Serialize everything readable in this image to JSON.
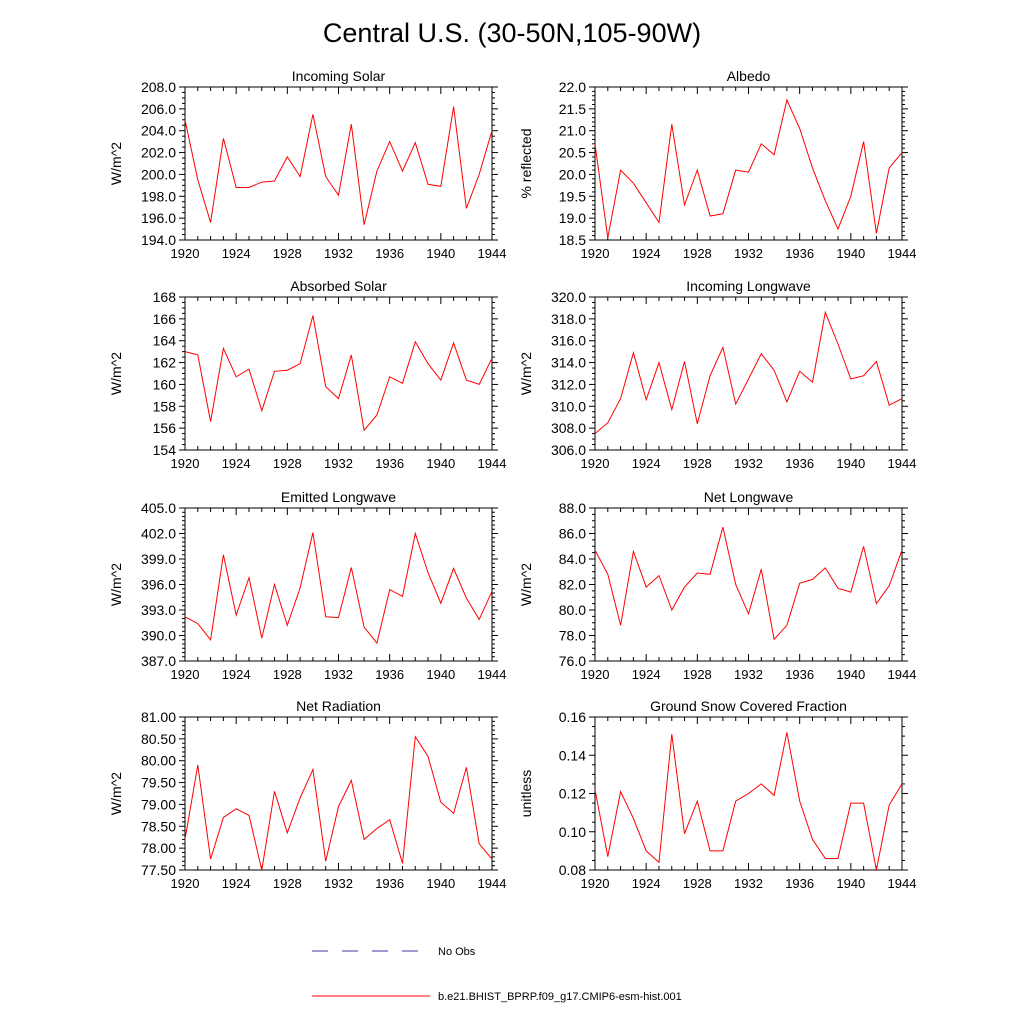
{
  "figure_title": "Central U.S. (30-50N,105-90W)",
  "colors": {
    "model": "#ff0000",
    "obs": "#3a3aa6",
    "axis": "#000000"
  },
  "legend": [
    {
      "label": "No Obs",
      "style": "dashed",
      "color": "#3a3aa6"
    },
    {
      "label": "b.e21.BHIST_BPRP.f09_g17.CMIP6-esm-hist.001",
      "style": "solid",
      "color": "#ff0000"
    }
  ],
  "chart_data": [
    {
      "type": "line",
      "title": "Incoming Solar",
      "ylabel": "W/m^2",
      "xlim": [
        1920,
        1944
      ],
      "ylim": [
        194,
        208
      ],
      "xticks": [
        1920,
        1924,
        1928,
        1932,
        1936,
        1940,
        1944
      ],
      "xtick_labels": [
        "1920",
        "1924",
        "1928",
        "1932",
        "1936",
        "1940",
        "1944"
      ],
      "yticks": [
        194,
        196,
        198,
        200,
        202,
        204,
        206,
        208
      ],
      "ytick_labels": [
        "194.0",
        "196.0",
        "198.0",
        "200.0",
        "202.0",
        "204.0",
        "206.0",
        "208.0"
      ],
      "yminor": 0.5,
      "series": [
        {
          "name": "b.e21.BHIST_BPRP.f09_g17.CMIP6-esm-hist.001",
          "x": [
            1920,
            1921,
            1922,
            1923,
            1924,
            1925,
            1926,
            1927,
            1928,
            1929,
            1930,
            1931,
            1932,
            1933,
            1934,
            1935,
            1936,
            1937,
            1938,
            1939,
            1940,
            1941,
            1942,
            1943,
            1944
          ],
          "values": [
            205.0,
            199.5,
            195.6,
            203.3,
            198.8,
            198.8,
            199.3,
            199.4,
            201.6,
            199.8,
            205.5,
            199.8,
            198.1,
            204.6,
            195.4,
            200.3,
            203.0,
            200.3,
            202.9,
            199.1,
            198.9,
            206.2,
            196.9,
            200.0,
            204.0
          ]
        }
      ]
    },
    {
      "type": "line",
      "title": "Albedo",
      "ylabel": "% reflected",
      "xlim": [
        1920,
        1944
      ],
      "ylim": [
        18.5,
        22.0
      ],
      "xticks": [
        1920,
        1924,
        1928,
        1932,
        1936,
        1940,
        1944
      ],
      "xtick_labels": [
        "1920",
        "1924",
        "1928",
        "1932",
        "1936",
        "1940",
        "1944"
      ],
      "yticks": [
        18.5,
        19.0,
        19.5,
        20.0,
        20.5,
        21.0,
        21.5,
        22.0
      ],
      "ytick_labels": [
        "18.5",
        "19.0",
        "19.5",
        "20.0",
        "20.5",
        "21.0",
        "21.5",
        "22.0"
      ],
      "yminor": 0.1,
      "series": [
        {
          "name": "b.e21.BHIST_BPRP.f09_g17.CMIP6-esm-hist.001",
          "x": [
            1920,
            1921,
            1922,
            1923,
            1924,
            1925,
            1926,
            1927,
            1928,
            1929,
            1930,
            1931,
            1932,
            1933,
            1934,
            1935,
            1936,
            1937,
            1938,
            1939,
            1940,
            1941,
            1942,
            1943,
            1944
          ],
          "values": [
            20.7,
            18.55,
            20.1,
            19.8,
            19.35,
            18.9,
            21.15,
            19.3,
            20.1,
            19.05,
            19.1,
            20.1,
            20.05,
            20.7,
            20.45,
            21.7,
            21.05,
            20.15,
            19.4,
            18.75,
            19.5,
            20.75,
            18.65,
            20.15,
            20.5
          ]
        }
      ]
    },
    {
      "type": "line",
      "title": "Absorbed Solar",
      "ylabel": "W/m^2",
      "xlim": [
        1920,
        1944
      ],
      "ylim": [
        154,
        168
      ],
      "xticks": [
        1920,
        1924,
        1928,
        1932,
        1936,
        1940,
        1944
      ],
      "xtick_labels": [
        "1920",
        "1924",
        "1928",
        "1932",
        "1936",
        "1940",
        "1944"
      ],
      "yticks": [
        154,
        156,
        158,
        160,
        162,
        164,
        166,
        168
      ],
      "ytick_labels": [
        "154",
        "156",
        "158",
        "160",
        "162",
        "164",
        "166",
        "168"
      ],
      "yminor": 0.5,
      "series": [
        {
          "name": "b.e21.BHIST_BPRP.f09_g17.CMIP6-esm-hist.001",
          "x": [
            1920,
            1921,
            1922,
            1923,
            1924,
            1925,
            1926,
            1927,
            1928,
            1929,
            1930,
            1931,
            1932,
            1933,
            1934,
            1935,
            1936,
            1937,
            1938,
            1939,
            1940,
            1941,
            1942,
            1943,
            1944
          ],
          "values": [
            163.0,
            162.7,
            156.6,
            163.3,
            160.7,
            161.4,
            157.6,
            161.2,
            161.3,
            161.9,
            166.3,
            159.8,
            158.7,
            162.7,
            155.8,
            157.2,
            160.7,
            160.1,
            163.9,
            161.9,
            160.4,
            163.8,
            160.4,
            160.0,
            162.4
          ]
        }
      ]
    },
    {
      "type": "line",
      "title": "Incoming Longwave",
      "ylabel": "W/m^2",
      "xlim": [
        1920,
        1944
      ],
      "ylim": [
        306,
        320
      ],
      "xticks": [
        1920,
        1924,
        1928,
        1932,
        1936,
        1940,
        1944
      ],
      "xtick_labels": [
        "1920",
        "1924",
        "1928",
        "1932",
        "1936",
        "1940",
        "1944"
      ],
      "yticks": [
        306,
        308,
        310,
        312,
        314,
        316,
        318,
        320
      ],
      "ytick_labels": [
        "306.0",
        "308.0",
        "310.0",
        "312.0",
        "314.0",
        "316.0",
        "318.0",
        "320.0"
      ],
      "yminor": 0.5,
      "series": [
        {
          "name": "b.e21.BHIST_BPRP.f09_g17.CMIP6-esm-hist.001",
          "x": [
            1920,
            1921,
            1922,
            1923,
            1924,
            1925,
            1926,
            1927,
            1928,
            1929,
            1930,
            1931,
            1932,
            1933,
            1934,
            1935,
            1936,
            1937,
            1938,
            1939,
            1940,
            1941,
            1942,
            1943,
            1944
          ],
          "values": [
            307.5,
            308.5,
            310.7,
            314.9,
            310.6,
            314.0,
            309.7,
            314.1,
            308.4,
            312.8,
            315.4,
            310.2,
            312.5,
            314.8,
            313.3,
            310.4,
            313.2,
            312.2,
            318.6,
            315.7,
            312.5,
            312.8,
            314.1,
            310.1,
            310.7
          ]
        }
      ]
    },
    {
      "type": "line",
      "title": "Emitted Longwave",
      "ylabel": "W/m^2",
      "xlim": [
        1920,
        1944
      ],
      "ylim": [
        387,
        405
      ],
      "xticks": [
        1920,
        1924,
        1928,
        1932,
        1936,
        1940,
        1944
      ],
      "xtick_labels": [
        "1920",
        "1924",
        "1928",
        "1932",
        "1936",
        "1940",
        "1944"
      ],
      "yticks": [
        387,
        390,
        393,
        396,
        399,
        402,
        405
      ],
      "ytick_labels": [
        "387.0",
        "390.0",
        "393.0",
        "396.0",
        "399.0",
        "402.0",
        "405.0"
      ],
      "yminor": 0.5,
      "series": [
        {
          "name": "b.e21.BHIST_BPRP.f09_g17.CMIP6-esm-hist.001",
          "x": [
            1920,
            1921,
            1922,
            1923,
            1924,
            1925,
            1926,
            1927,
            1928,
            1929,
            1930,
            1931,
            1932,
            1933,
            1934,
            1935,
            1936,
            1937,
            1938,
            1939,
            1940,
            1941,
            1942,
            1943,
            1944
          ],
          "values": [
            392.2,
            391.4,
            389.5,
            399.5,
            392.4,
            396.8,
            389.7,
            396.0,
            391.2,
            395.6,
            402.1,
            392.2,
            392.1,
            398.0,
            391.0,
            389.1,
            395.4,
            394.6,
            402.0,
            397.4,
            393.8,
            397.9,
            394.4,
            391.9,
            395.2
          ]
        }
      ]
    },
    {
      "type": "line",
      "title": "Net Longwave",
      "ylabel": "W/m^2",
      "xlim": [
        1920,
        1944
      ],
      "ylim": [
        76,
        88
      ],
      "xticks": [
        1920,
        1924,
        1928,
        1932,
        1936,
        1940,
        1944
      ],
      "xtick_labels": [
        "1920",
        "1924",
        "1928",
        "1932",
        "1936",
        "1940",
        "1944"
      ],
      "yticks": [
        76,
        78,
        80,
        82,
        84,
        86,
        88
      ],
      "ytick_labels": [
        "76.0",
        "78.0",
        "80.0",
        "82.0",
        "84.0",
        "86.0",
        "88.0"
      ],
      "yminor": 0.5,
      "series": [
        {
          "name": "b.e21.BHIST_BPRP.f09_g17.CMIP6-esm-hist.001",
          "x": [
            1920,
            1921,
            1922,
            1923,
            1924,
            1925,
            1926,
            1927,
            1928,
            1929,
            1930,
            1931,
            1932,
            1933,
            1934,
            1935,
            1936,
            1937,
            1938,
            1939,
            1940,
            1941,
            1942,
            1943,
            1944
          ],
          "values": [
            84.7,
            82.8,
            78.8,
            84.6,
            81.8,
            82.7,
            80.0,
            81.8,
            82.9,
            82.8,
            86.5,
            82.0,
            79.7,
            83.2,
            77.7,
            78.8,
            82.1,
            82.4,
            83.3,
            81.7,
            81.4,
            85.0,
            80.5,
            81.9,
            84.7
          ]
        }
      ]
    },
    {
      "type": "line",
      "title": "Net Radiation",
      "ylabel": "W/m^2",
      "xlim": [
        1920,
        1944
      ],
      "ylim": [
        77.5,
        81.0
      ],
      "xticks": [
        1920,
        1924,
        1928,
        1932,
        1936,
        1940,
        1944
      ],
      "xtick_labels": [
        "1920",
        "1924",
        "1928",
        "1932",
        "1936",
        "1940",
        "1944"
      ],
      "yticks": [
        77.5,
        78.0,
        78.5,
        79.0,
        79.5,
        80.0,
        80.5,
        81.0
      ],
      "ytick_labels": [
        "77.50",
        "78.00",
        "78.50",
        "79.00",
        "79.50",
        "80.00",
        "80.50",
        "81.00"
      ],
      "yminor": 0.1,
      "series": [
        {
          "name": "b.e21.BHIST_BPRP.f09_g17.CMIP6-esm-hist.001",
          "x": [
            1920,
            1921,
            1922,
            1923,
            1924,
            1925,
            1926,
            1927,
            1928,
            1929,
            1930,
            1931,
            1932,
            1933,
            1934,
            1935,
            1936,
            1937,
            1938,
            1939,
            1940,
            1941,
            1942,
            1943,
            1944
          ],
          "values": [
            78.2,
            79.9,
            77.75,
            78.7,
            78.9,
            78.75,
            77.5,
            79.3,
            78.35,
            79.15,
            79.8,
            77.7,
            78.95,
            79.55,
            78.2,
            78.45,
            78.65,
            77.65,
            80.55,
            80.1,
            79.05,
            78.8,
            79.85,
            78.1,
            77.75
          ]
        }
      ]
    },
    {
      "type": "line",
      "title": "Ground Snow Covered Fraction",
      "ylabel": "unitless",
      "xlim": [
        1920,
        1944
      ],
      "ylim": [
        0.08,
        0.16
      ],
      "xticks": [
        1920,
        1924,
        1928,
        1932,
        1936,
        1940,
        1944
      ],
      "xtick_labels": [
        "1920",
        "1924",
        "1928",
        "1932",
        "1936",
        "1940",
        "1944"
      ],
      "yticks": [
        0.08,
        0.1,
        0.12,
        0.14,
        0.16
      ],
      "ytick_labels": [
        "0.08",
        "0.10",
        "0.12",
        "0.14",
        "0.16"
      ],
      "yminor": 0.005,
      "series": [
        {
          "name": "b.e21.BHIST_BPRP.f09_g17.CMIP6-esm-hist.001",
          "x": [
            1920,
            1921,
            1922,
            1923,
            1924,
            1925,
            1926,
            1927,
            1928,
            1929,
            1930,
            1931,
            1932,
            1933,
            1934,
            1935,
            1936,
            1937,
            1938,
            1939,
            1940,
            1941,
            1942,
            1943,
            1944
          ],
          "values": [
            0.122,
            0.087,
            0.121,
            0.107,
            0.09,
            0.084,
            0.151,
            0.099,
            0.116,
            0.09,
            0.09,
            0.116,
            0.12,
            0.125,
            0.119,
            0.152,
            0.116,
            0.096,
            0.086,
            0.086,
            0.115,
            0.115,
            0.08,
            0.114,
            0.125
          ]
        }
      ]
    }
  ]
}
